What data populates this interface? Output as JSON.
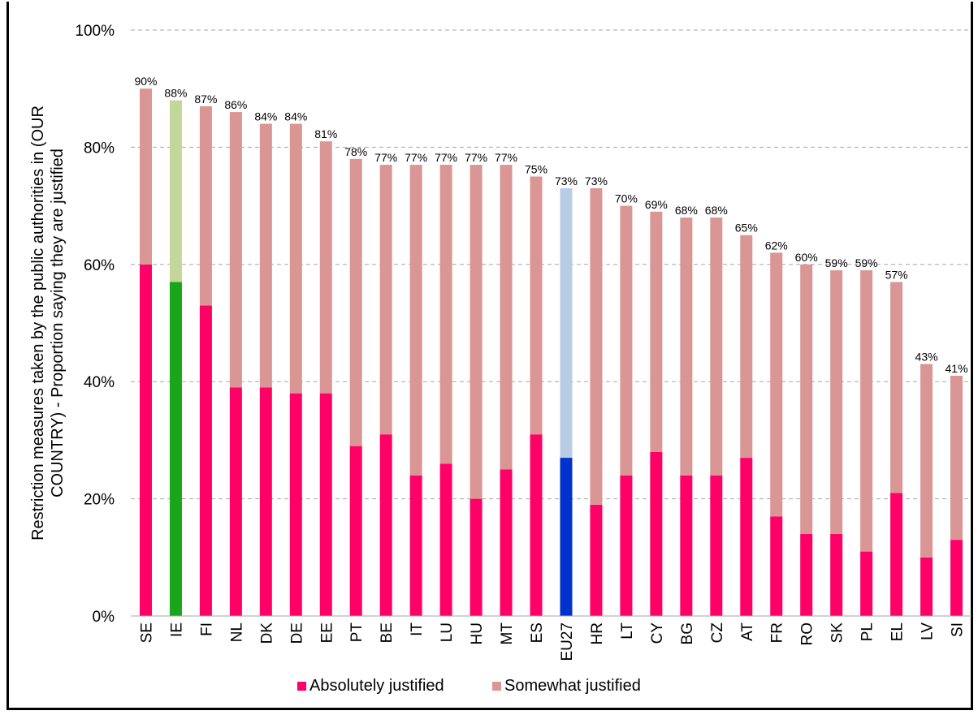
{
  "chart_data": {
    "type": "bar",
    "stacked": true,
    "ylabel": "Restriction measures taken by the public authorities in (OUR COUNTRY) - Proportion saying they are justified",
    "ylim": [
      0,
      100
    ],
    "yticks": [
      "0%",
      "20%",
      "40%",
      "60%",
      "80%",
      "100%"
    ],
    "grid": true,
    "legend_position": "bottom",
    "categories": [
      "SE",
      "IE",
      "FI",
      "NL",
      "DK",
      "DE",
      "EE",
      "PT",
      "BE",
      "IT",
      "LU",
      "HU",
      "MT",
      "ES",
      "EU27",
      "HR",
      "LT",
      "CY",
      "BG",
      "CZ",
      "AT",
      "FR",
      "RO",
      "SK",
      "PL",
      "EL",
      "LV",
      "SI"
    ],
    "series": [
      {
        "name": "Absolutely justified",
        "values": [
          60,
          57,
          53,
          39,
          39,
          38,
          38,
          29,
          31,
          24,
          26,
          20,
          25,
          31,
          27,
          19,
          24,
          28,
          24,
          24,
          27,
          17,
          14,
          14,
          11,
          21,
          10,
          13
        ]
      },
      {
        "name": "Somewhat justified",
        "values": [
          30,
          31,
          34,
          47,
          45,
          46,
          43,
          49,
          46,
          53,
          51,
          57,
          52,
          44,
          46,
          54,
          46,
          41,
          44,
          44,
          38,
          45,
          46,
          45,
          48,
          36,
          33,
          28
        ]
      }
    ],
    "totals": [
      "90%",
      "88%",
      "87%",
      "86%",
      "84%",
      "84%",
      "81%",
      "78%",
      "77%",
      "77%",
      "77%",
      "77%",
      "77%",
      "75%",
      "73%",
      "73%",
      "70%",
      "69%",
      "68%",
      "68%",
      "65%",
      "62%",
      "60%",
      "59%",
      "59%",
      "57%",
      "43%",
      "41%"
    ],
    "colors": {
      "absolutely": "#ff0066",
      "somewhat": "#da9694",
      "ie_absolutely": "#1aa61a",
      "ie_somewhat": "#c4d79b",
      "eu_absolutely": "#0033cc",
      "eu_somewhat": "#b8cce4",
      "grid": "#a6a6a6"
    }
  }
}
